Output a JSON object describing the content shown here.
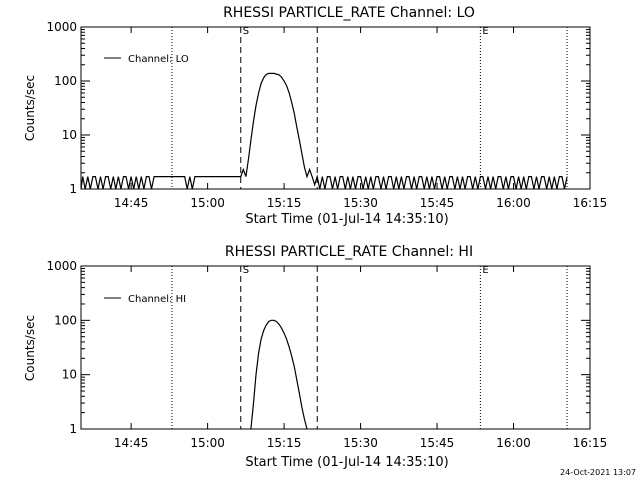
{
  "window": {
    "footer_timestamp": "24-Oct-2021 13:07"
  },
  "style": {
    "background": "#ffffff",
    "foreground": "#000000"
  },
  "chart_data": [
    {
      "type": "line",
      "title": "RHESSI PARTICLE_RATE Channel: LO",
      "xlabel": "Start Time (01-Jul-14 14:35:10)",
      "ylabel": "Counts/sec",
      "x_ticks": [
        "14:45",
        "15:00",
        "15:15",
        "15:30",
        "15:45",
        "16:00",
        "16:15"
      ],
      "y_ticks": [
        "1",
        "10",
        "100",
        "1000"
      ],
      "y_scale": "log",
      "xlim": [
        "14:35:10",
        "16:15:00"
      ],
      "ylim": [
        1,
        1000
      ],
      "grid": false,
      "legend": {
        "position": "top-left",
        "entries": [
          "Channel: LO"
        ]
      },
      "markers": [
        {
          "time": "14:53:00",
          "style": "dotted",
          "label": ""
        },
        {
          "time": "15:06:30",
          "style": "dashed",
          "label": "S"
        },
        {
          "time": "15:21:30",
          "style": "dashed",
          "label": ""
        },
        {
          "time": "15:53:30",
          "style": "dotted",
          "label": "E"
        },
        {
          "time": "16:10:30",
          "style": "dotted",
          "label": ""
        }
      ],
      "series": [
        {
          "name": "Channel: LO",
          "points": [
            [
              "14:35:10",
              1
            ],
            [
              "14:35:30",
              1.7
            ],
            [
              "14:36:00",
              1
            ],
            [
              "14:36:30",
              1.7
            ],
            [
              "14:37:00",
              1
            ],
            [
              "14:37:30",
              1.7
            ],
            [
              "14:38:00",
              1.7
            ],
            [
              "14:38:30",
              1
            ],
            [
              "14:39:00",
              1.7
            ],
            [
              "14:39:30",
              1
            ],
            [
              "14:40:00",
              1.7
            ],
            [
              "14:40:30",
              1.7
            ],
            [
              "14:41:00",
              1
            ],
            [
              "14:41:30",
              1.7
            ],
            [
              "14:42:00",
              1
            ],
            [
              "14:42:30",
              1.7
            ],
            [
              "14:43:00",
              1
            ],
            [
              "14:43:30",
              1.7
            ],
            [
              "14:44:00",
              1.7
            ],
            [
              "14:44:30",
              1
            ],
            [
              "14:45:00",
              1.7
            ],
            [
              "14:45:30",
              1
            ],
            [
              "14:46:00",
              1.7
            ],
            [
              "14:46:30",
              1
            ],
            [
              "14:47:00",
              1.7
            ],
            [
              "14:47:30",
              1
            ],
            [
              "14:48:00",
              1.7
            ],
            [
              "14:48:30",
              1.7
            ],
            [
              "14:49:00",
              1
            ],
            [
              "14:49:30",
              1.7
            ],
            [
              "14:50:00",
              1.7
            ],
            [
              "14:51:00",
              1.7
            ],
            [
              "14:52:00",
              1.7
            ],
            [
              "14:53:00",
              1.7
            ],
            [
              "14:54:00",
              1.7
            ],
            [
              "14:55:00",
              1.7
            ],
            [
              "14:55:30",
              1.7
            ],
            [
              "14:56:00",
              1
            ],
            [
              "14:56:30",
              1.7
            ],
            [
              "14:57:00",
              1
            ],
            [
              "14:57:30",
              1.7
            ],
            [
              "14:58:00",
              1.7
            ],
            [
              "14:59:00",
              1.7
            ],
            [
              "15:00:00",
              1.7
            ],
            [
              "15:01:00",
              1.7
            ],
            [
              "15:02:00",
              1.7
            ],
            [
              "15:03:00",
              1.7
            ],
            [
              "15:04:00",
              1.7
            ],
            [
              "15:05:00",
              1.7
            ],
            [
              "15:06:00",
              1.7
            ],
            [
              "15:06:30",
              1.7
            ],
            [
              "15:07:00",
              2.3
            ],
            [
              "15:07:30",
              1.7
            ],
            [
              "15:08:00",
              3.5
            ],
            [
              "15:08:30",
              8
            ],
            [
              "15:09:00",
              18
            ],
            [
              "15:09:30",
              35
            ],
            [
              "15:10:00",
              60
            ],
            [
              "15:10:30",
              90
            ],
            [
              "15:11:00",
              115
            ],
            [
              "15:11:30",
              132
            ],
            [
              "15:12:00",
              138
            ],
            [
              "15:13:00",
              138
            ],
            [
              "15:14:00",
              130
            ],
            [
              "15:14:30",
              118
            ],
            [
              "15:15:00",
              100
            ],
            [
              "15:15:30",
              82
            ],
            [
              "15:16:00",
              60
            ],
            [
              "15:16:30",
              40
            ],
            [
              "15:17:00",
              25
            ],
            [
              "15:17:30",
              14
            ],
            [
              "15:18:00",
              8
            ],
            [
              "15:18:30",
              4.5
            ],
            [
              "15:19:00",
              2.5
            ],
            [
              "15:19:30",
              1.7
            ],
            [
              "15:20:00",
              2.3
            ],
            [
              "15:20:30",
              1.7
            ],
            [
              "15:21:00",
              1.2
            ],
            [
              "15:21:30",
              1.7
            ],
            [
              "15:22:00",
              1
            ],
            [
              "15:22:30",
              1.7
            ],
            [
              "15:23:00",
              1
            ],
            [
              "15:23:30",
              1.7
            ],
            [
              "15:24:00",
              1.7
            ],
            [
              "15:24:30",
              1
            ],
            [
              "15:25:00",
              1.7
            ],
            [
              "15:25:30",
              1
            ],
            [
              "15:26:00",
              1.7
            ],
            [
              "15:26:30",
              1.7
            ],
            [
              "15:27:00",
              1
            ],
            [
              "15:27:30",
              1.7
            ],
            [
              "15:28:00",
              1
            ],
            [
              "15:28:30",
              1.7
            ],
            [
              "15:29:00",
              1
            ],
            [
              "15:29:30",
              1.7
            ],
            [
              "15:30:00",
              1.7
            ],
            [
              "15:30:30",
              1
            ],
            [
              "15:31:00",
              1.7
            ],
            [
              "15:31:30",
              1
            ],
            [
              "15:32:00",
              1.7
            ],
            [
              "15:32:30",
              1
            ],
            [
              "15:33:00",
              1.7
            ],
            [
              "15:33:30",
              1.7
            ],
            [
              "15:34:00",
              1
            ],
            [
              "15:34:30",
              1.7
            ],
            [
              "15:35:00",
              1
            ],
            [
              "15:35:30",
              1.7
            ],
            [
              "15:36:00",
              1.7
            ],
            [
              "15:36:30",
              1
            ],
            [
              "15:37:00",
              1.7
            ],
            [
              "15:37:30",
              1
            ],
            [
              "15:38:00",
              1.7
            ],
            [
              "15:38:30",
              1
            ],
            [
              "15:39:00",
              1.7
            ],
            [
              "15:39:30",
              1.7
            ],
            [
              "15:40:00",
              1
            ],
            [
              "15:40:30",
              1.7
            ],
            [
              "15:41:00",
              1
            ],
            [
              "15:41:30",
              1.7
            ],
            [
              "15:42:00",
              1.7
            ],
            [
              "15:42:30",
              1
            ],
            [
              "15:43:00",
              1.7
            ],
            [
              "15:43:30",
              1
            ],
            [
              "15:44:00",
              1.7
            ],
            [
              "15:44:30",
              1
            ],
            [
              "15:45:00",
              1.7
            ],
            [
              "15:45:30",
              1.7
            ],
            [
              "15:46:00",
              1
            ],
            [
              "15:46:30",
              1.7
            ],
            [
              "15:47:00",
              1
            ],
            [
              "15:47:30",
              1.7
            ],
            [
              "15:48:00",
              1.7
            ],
            [
              "15:48:30",
              1
            ],
            [
              "15:49:00",
              1.7
            ],
            [
              "15:49:30",
              1
            ],
            [
              "15:50:00",
              1.7
            ],
            [
              "15:50:30",
              1
            ],
            [
              "15:51:00",
              1.7
            ],
            [
              "15:51:30",
              1.7
            ],
            [
              "15:52:00",
              1
            ],
            [
              "15:52:30",
              1.7
            ],
            [
              "15:53:00",
              1
            ],
            [
              "15:53:30",
              1.7
            ],
            [
              "15:54:00",
              1.7
            ],
            [
              "15:54:30",
              1
            ],
            [
              "15:55:00",
              1.7
            ],
            [
              "15:55:30",
              1
            ],
            [
              "15:56:00",
              1.7
            ],
            [
              "15:56:30",
              1
            ],
            [
              "15:57:00",
              1.7
            ],
            [
              "15:57:30",
              1.7
            ],
            [
              "15:58:00",
              1
            ],
            [
              "15:58:30",
              1.7
            ],
            [
              "15:59:00",
              1
            ],
            [
              "15:59:30",
              1.7
            ],
            [
              "16:00:00",
              1.7
            ],
            [
              "16:00:30",
              1
            ],
            [
              "16:01:00",
              1.7
            ],
            [
              "16:01:30",
              1
            ],
            [
              "16:02:00",
              1.7
            ],
            [
              "16:02:30",
              1
            ],
            [
              "16:03:00",
              1.7
            ],
            [
              "16:03:30",
              1.7
            ],
            [
              "16:04:00",
              1
            ],
            [
              "16:04:30",
              1.7
            ],
            [
              "16:05:00",
              1
            ],
            [
              "16:05:30",
              1.7
            ],
            [
              "16:06:00",
              1.7
            ],
            [
              "16:06:30",
              1
            ],
            [
              "16:07:00",
              1.7
            ],
            [
              "16:07:30",
              1
            ],
            [
              "16:08:00",
              1.7
            ],
            [
              "16:08:30",
              1
            ],
            [
              "16:09:00",
              1.7
            ],
            [
              "16:09:30",
              1.7
            ],
            [
              "16:10:00",
              1
            ],
            [
              "16:10:30",
              1.7
            ]
          ]
        }
      ]
    },
    {
      "type": "line",
      "title": "RHESSI PARTICLE_RATE Channel: HI",
      "xlabel": "Start Time (01-Jul-14 14:35:10)",
      "ylabel": "Counts/sec",
      "x_ticks": [
        "14:45",
        "15:00",
        "15:15",
        "15:30",
        "15:45",
        "16:00",
        "16:15"
      ],
      "y_ticks": [
        "1",
        "10",
        "100",
        "1000"
      ],
      "y_scale": "log",
      "xlim": [
        "14:35:10",
        "16:15:00"
      ],
      "ylim": [
        1,
        1000
      ],
      "grid": false,
      "legend": {
        "position": "top-left",
        "entries": [
          "Channel: HI"
        ]
      },
      "markers": [
        {
          "time": "14:53:00",
          "style": "dotted",
          "label": ""
        },
        {
          "time": "15:06:30",
          "style": "dashed",
          "label": "S"
        },
        {
          "time": "15:21:30",
          "style": "dashed",
          "label": ""
        },
        {
          "time": "15:53:30",
          "style": "dotted",
          "label": "E"
        },
        {
          "time": "16:10:30",
          "style": "dotted",
          "label": ""
        }
      ],
      "series": [
        {
          "name": "Channel: HI",
          "points": [
            [
              "15:08:30",
              1
            ],
            [
              "15:09:00",
              3
            ],
            [
              "15:09:30",
              10
            ],
            [
              "15:10:00",
              25
            ],
            [
              "15:10:30",
              45
            ],
            [
              "15:11:00",
              65
            ],
            [
              "15:11:30",
              82
            ],
            [
              "15:12:00",
              95
            ],
            [
              "15:12:30",
              100
            ],
            [
              "15:13:00",
              100
            ],
            [
              "15:13:30",
              95
            ],
            [
              "15:14:00",
              85
            ],
            [
              "15:14:30",
              72
            ],
            [
              "15:15:00",
              58
            ],
            [
              "15:15:30",
              45
            ],
            [
              "15:16:00",
              32
            ],
            [
              "15:16:30",
              22
            ],
            [
              "15:17:00",
              14
            ],
            [
              "15:17:30",
              8
            ],
            [
              "15:18:00",
              4.5
            ],
            [
              "15:18:30",
              2.5
            ],
            [
              "15:19:00",
              1.5
            ],
            [
              "15:19:30",
              1
            ]
          ]
        }
      ]
    }
  ]
}
